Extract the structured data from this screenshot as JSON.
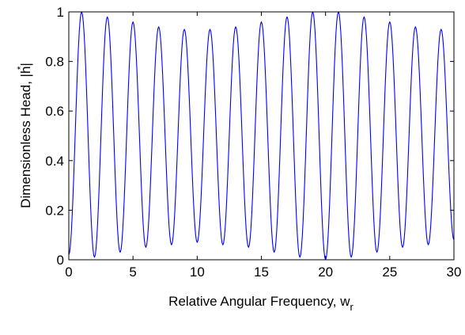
{
  "chart_data": {
    "type": "line",
    "title": "",
    "xlabel": "Relative Angular Frequency, w",
    "xlabel_subscript": "r",
    "ylabel": "Dimensionless Head, |h|",
    "ylabel_superscript": "*",
    "xlim": [
      0,
      30
    ],
    "ylim": [
      0,
      1
    ],
    "xticks": [
      "0",
      "5",
      "10",
      "15",
      "20",
      "25",
      "30"
    ],
    "yticks": [
      "0",
      "0.2",
      "0.4",
      "0.6",
      "0.8",
      "1"
    ],
    "grid": false,
    "legend": "none",
    "line_color": "#0000ff",
    "series": [
      {
        "x": [
          0,
          1,
          2,
          3,
          4,
          5,
          6,
          7,
          8,
          9,
          10,
          11,
          12,
          13,
          14,
          15,
          16,
          17,
          18,
          19,
          20,
          21,
          22,
          23,
          24,
          25,
          26,
          27,
          28,
          29,
          30
        ],
        "values": [
          0.02,
          1.0,
          0.01,
          0.98,
          0.03,
          0.96,
          0.05,
          0.94,
          0.06,
          0.93,
          0.07,
          0.93,
          0.06,
          0.94,
          0.05,
          0.96,
          0.03,
          0.98,
          0.01,
          1.0,
          0.0,
          1.0,
          0.01,
          0.98,
          0.03,
          0.96,
          0.05,
          0.94,
          0.06,
          0.93,
          0.08
        ]
      }
    ]
  }
}
